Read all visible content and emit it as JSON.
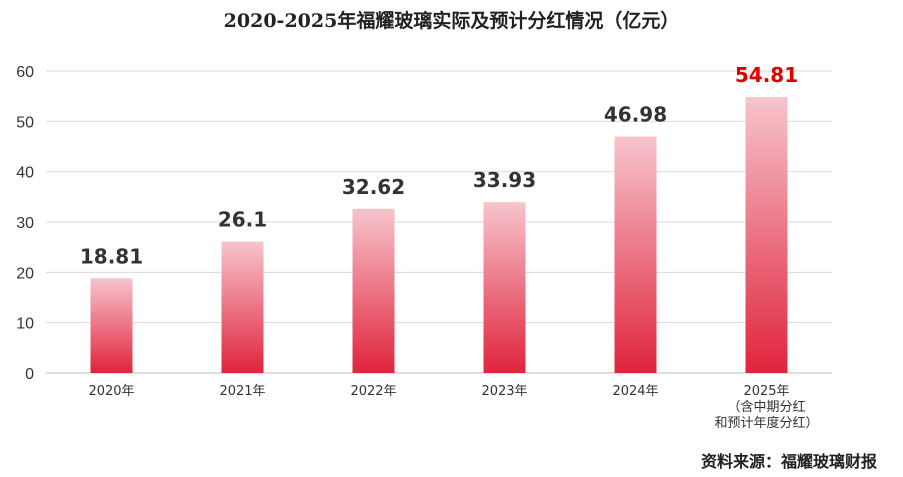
{
  "chart_data": {
    "type": "bar",
    "title": "2020-2025年福耀玻璃实际及预计分红情况（亿元）",
    "categories": [
      "2020年",
      "2021年",
      "2022年",
      "2023年",
      "2024年",
      "2025年\n（含中期分红\n和预计年度分红）"
    ],
    "values": [
      18.81,
      26.1,
      32.62,
      33.93,
      46.98,
      54.81
    ],
    "value_labels": [
      "18.81",
      "26.1",
      "32.62",
      "33.93",
      "46.98",
      "54.81"
    ],
    "yticks": [
      "0",
      "10",
      "20",
      "30",
      "40",
      "50",
      "60"
    ],
    "ylim": [
      0,
      60
    ],
    "grid": true,
    "legend": "none",
    "colors": {
      "bar_top": "#f7c4cc",
      "bar_bottom": "#e0243c",
      "label_default": "#333333",
      "label_highlight": "#e00000",
      "grid": "#d9d9d9",
      "axis": "#bfbfbf"
    },
    "highlight_index": 5
  },
  "source": "资料来源：福耀玻璃财报"
}
